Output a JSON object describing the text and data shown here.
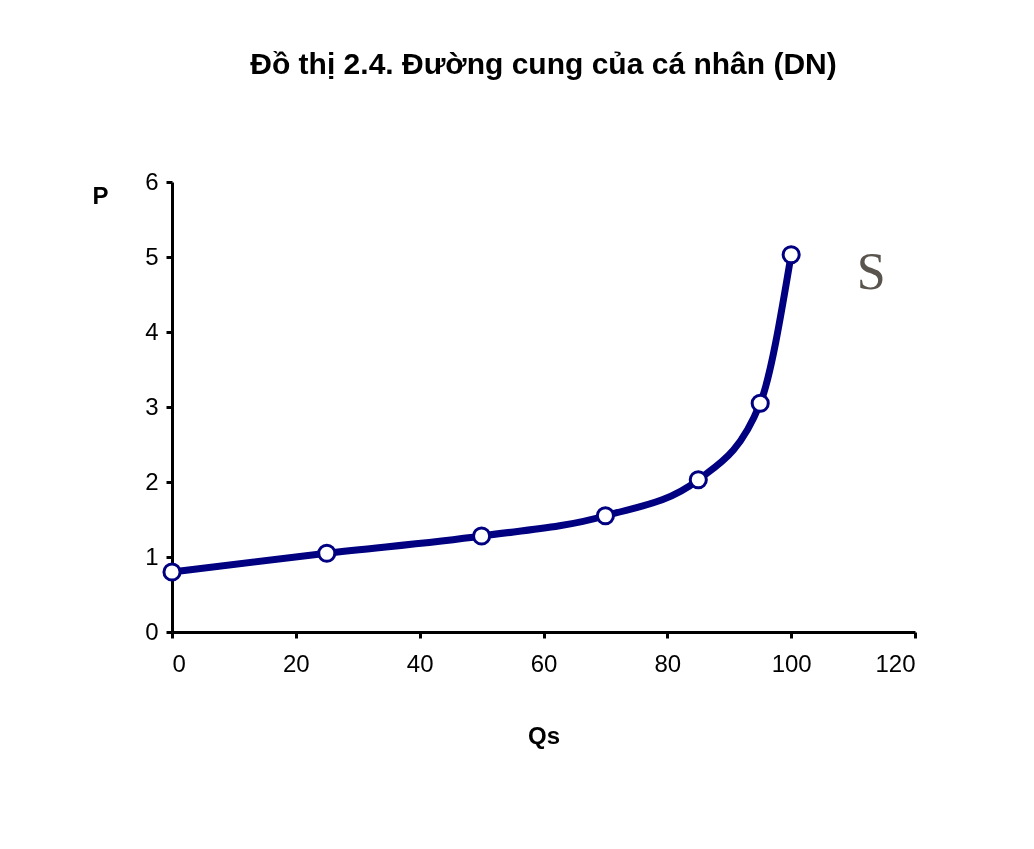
{
  "chart_data": {
    "type": "line",
    "title": "Đồ thị 2.4. Đường cung của cá nhân (DN)",
    "xlabel": "Qs",
    "ylabel": "P",
    "x": [
      0,
      25,
      50,
      70,
      85,
      95,
      100
    ],
    "series": [
      {
        "name": "S",
        "color": "#000080",
        "values": [
          0.8,
          1.05,
          1.28,
          1.55,
          2.03,
          3.05,
          5.03
        ]
      }
    ],
    "xlim": [
      0,
      120
    ],
    "xticks": [
      0,
      20,
      40,
      60,
      80,
      100,
      120
    ],
    "ylim": [
      0,
      6
    ],
    "yticks": [
      0,
      1,
      2,
      3,
      4,
      5,
      6
    ],
    "marker": "circle",
    "line_style": "solid"
  }
}
